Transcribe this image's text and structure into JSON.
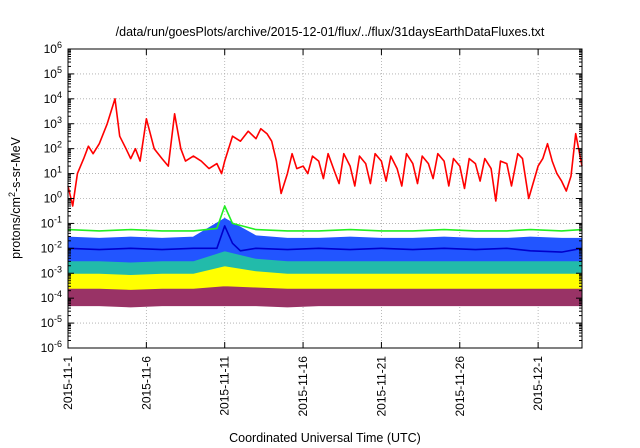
{
  "chart_data": {
    "type": "line",
    "title": "/data/run/goesPlots/archive/2015-12-01/flux/../flux/31daysEarthDataFluxes.txt",
    "xlabel": "Coordinated Universal Time (UTC)",
    "ylabel": {
      "base": "protons/cm",
      "sup": "2",
      "rest": "-s-sr-MeV"
    },
    "y_scale": "log",
    "ylim_exp": [
      -6,
      6
    ],
    "y_ticks": [
      {
        "exp": -6,
        "label": "10",
        "sup": "-6"
      },
      {
        "exp": -5,
        "label": "10",
        "sup": "-5"
      },
      {
        "exp": -4,
        "label": "10",
        "sup": "-4"
      },
      {
        "exp": -3,
        "label": "10",
        "sup": "-3"
      },
      {
        "exp": -2,
        "label": "10",
        "sup": "-2"
      },
      {
        "exp": -1,
        "label": "10",
        "sup": "-1"
      },
      {
        "exp": 0,
        "label": "10",
        "sup": "0"
      },
      {
        "exp": 1,
        "label": "10",
        "sup": "1"
      },
      {
        "exp": 2,
        "label": "10",
        "sup": "2"
      },
      {
        "exp": 3,
        "label": "10",
        "sup": "3"
      },
      {
        "exp": 4,
        "label": "10",
        "sup": "4"
      },
      {
        "exp": 5,
        "label": "10",
        "sup": "5"
      },
      {
        "exp": 6,
        "label": "10",
        "sup": "6"
      }
    ],
    "x_range_days": [
      0,
      32.8
    ],
    "x_ticks": [
      {
        "day": 0,
        "label": "2015-11-1"
      },
      {
        "day": 5,
        "label": "2015-11-6"
      },
      {
        "day": 10,
        "label": "2015-11-11"
      },
      {
        "day": 15,
        "label": "2015-11-16"
      },
      {
        "day": 20,
        "label": "2015-11-21"
      },
      {
        "day": 25,
        "label": "2015-11-26"
      },
      {
        "day": 30,
        "label": "2015-12-1"
      }
    ],
    "grid": true,
    "series": [
      {
        "color": "#993366",
        "kind": "band",
        "x": [
          0,
          2,
          4,
          6,
          8,
          10,
          12,
          14,
          16,
          18,
          20,
          22,
          24,
          26,
          28,
          29.5,
          31.5,
          32.8
        ],
        "lo": [
          -4.3,
          -4.3,
          -4.35,
          -4.3,
          -4.3,
          -4.3,
          -4.3,
          -4.35,
          -4.3,
          -4.3,
          -4.3,
          -4.3,
          -4.3,
          -4.3,
          -4.3,
          -4.3,
          -4.3,
          -4.3
        ],
        "hi": [
          -3.5,
          -3.55,
          -3.5,
          -3.55,
          -3.55,
          -3.4,
          -3.5,
          -3.55,
          -3.55,
          -3.5,
          -3.55,
          -3.55,
          -3.5,
          -3.55,
          -3.55,
          -3.5,
          -3.5,
          -3.55
        ]
      },
      {
        "color": "#ffff00",
        "kind": "band",
        "x": [
          0,
          2,
          4,
          6,
          8,
          10,
          12,
          14,
          16,
          18,
          20,
          22,
          24,
          26,
          28,
          29.5,
          31.5,
          32.8
        ],
        "lo": [
          -3.6,
          -3.6,
          -3.65,
          -3.6,
          -3.6,
          -3.5,
          -3.55,
          -3.6,
          -3.6,
          -3.6,
          -3.6,
          -3.6,
          -3.6,
          -3.6,
          -3.6,
          -3.6,
          -3.6,
          -3.6
        ],
        "hi": [
          -2.9,
          -2.95,
          -2.9,
          -2.95,
          -2.9,
          -2.6,
          -2.85,
          -2.95,
          -2.95,
          -2.9,
          -2.95,
          -2.95,
          -2.9,
          -2.95,
          -2.95,
          -2.9,
          -2.95,
          -2.95
        ]
      },
      {
        "color": "#22bbaa",
        "kind": "band",
        "x": [
          0,
          2,
          4,
          6,
          8,
          10,
          12,
          14,
          16,
          18,
          20,
          22,
          24,
          26,
          28,
          29.5,
          31.5,
          32.8
        ],
        "lo": [
          -3.0,
          -3.0,
          -3.05,
          -3.0,
          -3.0,
          -2.7,
          -2.9,
          -3.0,
          -3.0,
          -3.0,
          -3.0,
          -3.0,
          -3.0,
          -3.0,
          -3.0,
          -3.0,
          -3.0,
          -3.0
        ],
        "hi": [
          -2.2,
          -2.25,
          -2.2,
          -2.25,
          -2.2,
          -1.7,
          -2.1,
          -2.25,
          -2.25,
          -2.2,
          -2.25,
          -2.25,
          -2.2,
          -2.25,
          -2.25,
          -2.2,
          -2.25,
          -2.25
        ]
      },
      {
        "color": "#2255ff",
        "kind": "band",
        "x": [
          0,
          2,
          4,
          6,
          8,
          10,
          12,
          14,
          16,
          18,
          20,
          22,
          24,
          26,
          28,
          29.5,
          31.5,
          32.8
        ],
        "lo": [
          -2.5,
          -2.5,
          -2.55,
          -2.5,
          -2.5,
          -2.1,
          -2.4,
          -2.5,
          -2.5,
          -2.5,
          -2.5,
          -2.5,
          -2.5,
          -2.5,
          -2.5,
          -2.5,
          -2.5,
          -2.5
        ],
        "hi": [
          -1.55,
          -1.6,
          -1.55,
          -1.6,
          -1.55,
          -0.8,
          -1.5,
          -1.6,
          -1.6,
          -1.55,
          -1.6,
          -1.6,
          -1.55,
          -1.6,
          -1.6,
          -1.55,
          -1.6,
          -1.6
        ]
      },
      {
        "color": "#22ee22",
        "kind": "line",
        "x": [
          0,
          2,
          4,
          6,
          8,
          9.5,
          10,
          10.5,
          12,
          14,
          16,
          18,
          20,
          22,
          24,
          26,
          28,
          29.5,
          31.5,
          32.8
        ],
        "y": [
          -1.25,
          -1.3,
          -1.25,
          -1.3,
          -1.3,
          -1.2,
          -0.3,
          -1.0,
          -1.25,
          -1.3,
          -1.3,
          -1.25,
          -1.3,
          -1.3,
          -1.25,
          -1.3,
          -1.3,
          -1.25,
          -1.3,
          -1.25
        ]
      },
      {
        "color": "#0000cc",
        "kind": "line",
        "x": [
          0,
          2,
          4,
          6,
          8,
          9.5,
          10,
          10.5,
          11,
          12,
          14,
          16,
          18,
          20,
          22,
          24,
          26,
          28,
          29.5,
          31.5,
          32.8
        ],
        "y": [
          -2.0,
          -2.05,
          -2.0,
          -2.05,
          -2.0,
          -2.0,
          -1.1,
          -1.8,
          -2.1,
          -2.0,
          -2.05,
          -2.0,
          -2.05,
          -2.0,
          -2.05,
          -2.0,
          -2.05,
          -2.0,
          -2.1,
          -2.15,
          -2.0
        ]
      },
      {
        "color": "#ff0000",
        "kind": "line",
        "x": [
          0,
          0.3,
          0.6,
          1.0,
          1.3,
          1.6,
          2.0,
          2.5,
          3.0,
          3.3,
          3.7,
          4.0,
          4.3,
          4.6,
          5.0,
          5.5,
          6.0,
          6.4,
          6.8,
          7.2,
          7.5,
          8.0,
          8.5,
          9.0,
          9.5,
          9.8,
          10.0,
          10.5,
          11.0,
          11.5,
          12.0,
          12.3,
          12.7,
          13.0,
          13.3,
          13.6,
          14.0,
          14.3,
          14.6,
          15.0,
          15.3,
          15.6,
          16.0,
          16.3,
          16.6,
          17.0,
          17.3,
          17.6,
          18.0,
          18.3,
          18.6,
          19.0,
          19.3,
          19.6,
          20.0,
          20.3,
          20.6,
          21.0,
          21.3,
          21.6,
          22.0,
          22.3,
          22.6,
          23.0,
          23.3,
          23.6,
          24.0,
          24.3,
          24.6,
          25.0,
          25.3,
          25.6,
          26.0,
          26.3,
          26.6,
          27.0,
          27.3,
          27.6,
          28.0,
          28.3,
          28.7,
          29.0,
          29.4,
          30.0,
          30.3,
          30.6,
          30.9,
          31.2,
          31.5,
          31.8,
          32.1,
          32.4,
          32.8
        ],
        "y": [
          0.5,
          -0.3,
          1.0,
          1.6,
          2.1,
          1.8,
          2.2,
          3.0,
          4.0,
          2.5,
          2.0,
          1.6,
          2.0,
          1.5,
          3.2,
          2.0,
          1.6,
          1.3,
          3.4,
          2.0,
          1.5,
          1.7,
          1.5,
          1.2,
          1.4,
          1.0,
          1.5,
          2.5,
          2.3,
          2.7,
          2.4,
          2.8,
          2.6,
          2.3,
          1.5,
          0.2,
          1.0,
          1.8,
          1.2,
          1.3,
          1.0,
          1.7,
          1.5,
          0.8,
          1.8,
          1.1,
          0.6,
          1.8,
          1.3,
          0.5,
          1.7,
          1.4,
          0.6,
          1.8,
          1.5,
          0.7,
          1.7,
          1.2,
          0.5,
          1.8,
          1.4,
          0.6,
          1.7,
          1.4,
          0.8,
          1.8,
          1.5,
          0.5,
          1.6,
          1.3,
          0.4,
          1.6,
          1.4,
          0.7,
          1.6,
          1.2,
          -0.1,
          1.5,
          1.4,
          0.5,
          1.8,
          1.6,
          0.0,
          1.3,
          1.6,
          2.2,
          1.5,
          1.0,
          0.7,
          0.3,
          0.9,
          2.6,
          1.3
        ]
      }
    ]
  }
}
